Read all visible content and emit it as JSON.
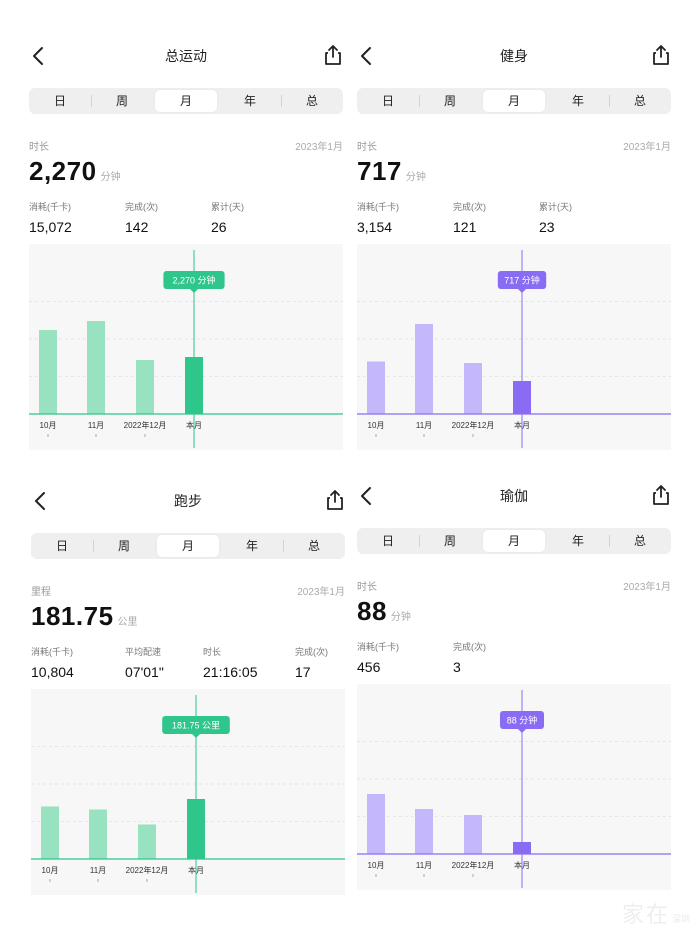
{
  "tabs": [
    "日",
    "周",
    "月",
    "年",
    "总"
  ],
  "panels": [
    {
      "title": "总运动",
      "metric_label": "时长",
      "date": "2023年1月",
      "value": "2,270",
      "unit": "分钟",
      "stats": [
        {
          "label": "消耗(千卡)",
          "value": "15,072"
        },
        {
          "label": "完成(次)",
          "value": "142"
        },
        {
          "label": "累计(天)",
          "value": "26"
        }
      ],
      "tooltip": "2,270 分钟",
      "color_light": "#98e2c2",
      "color_dark": "#2ec68a",
      "chart_data": {
        "type": "bar",
        "categories": [
          "10月",
          "11月",
          "2022年12月",
          "本月"
        ],
        "values": [
          0.56,
          0.62,
          0.36,
          0.38
        ],
        "highlight_index": 3
      }
    },
    {
      "title": "健身",
      "metric_label": "时长",
      "date": "2023年1月",
      "value": "717",
      "unit": "分钟",
      "stats": [
        {
          "label": "消耗(千卡)",
          "value": "3,154"
        },
        {
          "label": "完成(次)",
          "value": "121"
        },
        {
          "label": "累计(天)",
          "value": "23"
        }
      ],
      "tooltip": "717 分钟",
      "color_light": "#c4b8fb",
      "color_dark": "#8a6cf4",
      "chart_data": {
        "type": "bar",
        "categories": [
          "10月",
          "11月",
          "2022年12月",
          "本月"
        ],
        "values": [
          0.35,
          0.6,
          0.34,
          0.22
        ],
        "highlight_index": 3
      }
    },
    {
      "title": "跑步",
      "metric_label": "里程",
      "date": "2023年1月",
      "value": "181.75",
      "unit": "公里",
      "stats": [
        {
          "label": "消耗(千卡)",
          "value": "10,804"
        },
        {
          "label": "平均配速",
          "value": "07'01\""
        },
        {
          "label": "时长",
          "value": "21:16:05"
        },
        {
          "label": "完成(次)",
          "value": "17"
        }
      ],
      "tooltip": "181.75 公里",
      "color_light": "#98e2c2",
      "color_dark": "#2ec68a",
      "chart_data": {
        "type": "bar",
        "categories": [
          "10月",
          "11月",
          "2022年12月",
          "本月"
        ],
        "values": [
          0.35,
          0.33,
          0.23,
          0.4
        ],
        "highlight_index": 3
      }
    },
    {
      "title": "瑜伽",
      "metric_label": "时长",
      "date": "2023年1月",
      "value": "88",
      "unit": "分钟",
      "stats": [
        {
          "label": "消耗(千卡)",
          "value": "456"
        },
        {
          "label": "完成(次)",
          "value": "3"
        }
      ],
      "tooltip": "88 分钟",
      "color_light": "#c4b8fb",
      "color_dark": "#8a6cf4",
      "chart_data": {
        "type": "bar",
        "categories": [
          "10月",
          "11月",
          "2022年12月",
          "本月"
        ],
        "values": [
          0.4,
          0.3,
          0.26,
          0.08
        ],
        "highlight_index": 3
      }
    }
  ],
  "watermark": {
    "main": "家在",
    "sub": "深圳"
  }
}
